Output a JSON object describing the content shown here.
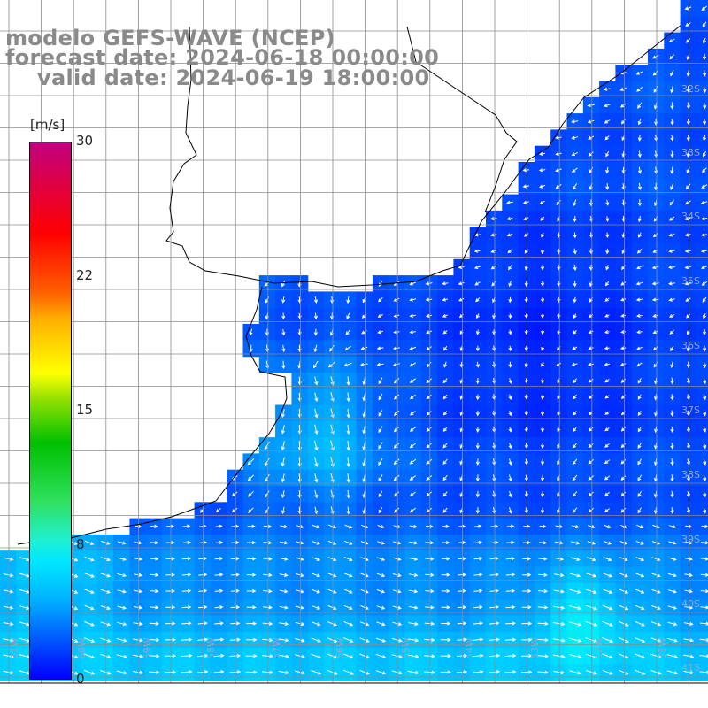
{
  "header": {
    "model": "modelo GEFS-WAVE (NCEP)",
    "forecast": "forecast date: 2024-06-18 00:00:00",
    "valid": "valid date: 2024-06-19 18:00:00"
  },
  "colorbar": {
    "unit": "[m/s]",
    "ticks": [
      "30",
      "22",
      "15",
      "8",
      "0"
    ],
    "tick_values": [
      30,
      22,
      15,
      8,
      0
    ],
    "range": [
      0,
      30
    ]
  },
  "lat_labels": [
    "32S",
    "33S",
    "34S",
    "35S",
    "36S",
    "37S",
    "38S",
    "39S",
    "40S",
    "41S"
  ],
  "lon_labels": [
    "61W",
    "60W",
    "59W",
    "58W",
    "57W",
    "56W",
    "55W",
    "54W",
    "53W",
    "52W",
    "51W"
  ],
  "colors": {
    "land": "#ffffff",
    "coast": "#000000",
    "grid": "#8c8c8c",
    "arrows": "#ffffff",
    "low_wind": "#0000ff",
    "mid_wind": "#00c8ff",
    "high_wind": "#30e080"
  }
}
